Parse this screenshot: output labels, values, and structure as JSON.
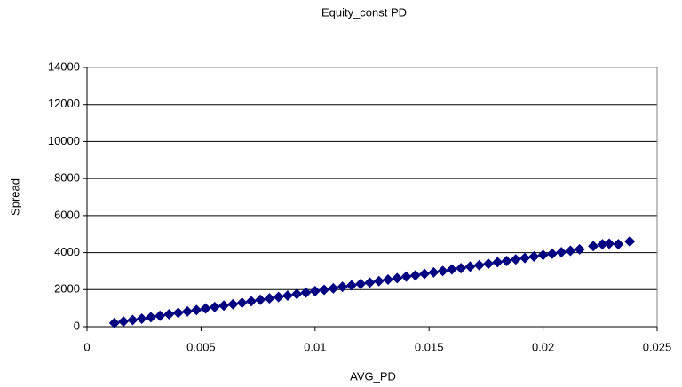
{
  "chart_data": {
    "type": "scatter",
    "title": "Equity_const PD",
    "xlabel": "AVG_PD",
    "ylabel": "Spread",
    "x": [
      0.0012,
      0.0016,
      0.002,
      0.0024,
      0.0028,
      0.0032,
      0.0036,
      0.004,
      0.0044,
      0.0048,
      0.0052,
      0.0056,
      0.006,
      0.0064,
      0.0068,
      0.0072,
      0.0076,
      0.008,
      0.0084,
      0.0088,
      0.0092,
      0.0096,
      0.01,
      0.0104,
      0.0108,
      0.0112,
      0.0116,
      0.012,
      0.0124,
      0.0128,
      0.0132,
      0.0136,
      0.014,
      0.0144,
      0.0148,
      0.0152,
      0.0156,
      0.016,
      0.0164,
      0.0168,
      0.0172,
      0.0176,
      0.018,
      0.0184,
      0.0188,
      0.0192,
      0.0196,
      0.02,
      0.0204,
      0.0208,
      0.0212,
      0.0216,
      0.0222,
      0.0226,
      0.0229,
      0.0233,
      0.0238
    ],
    "values": [
      200,
      280,
      360,
      430,
      510,
      590,
      670,
      750,
      820,
      900,
      980,
      1060,
      1140,
      1210,
      1290,
      1370,
      1450,
      1530,
      1600,
      1680,
      1760,
      1840,
      1920,
      1990,
      2070,
      2150,
      2230,
      2310,
      2380,
      2460,
      2540,
      2620,
      2700,
      2770,
      2850,
      2930,
      3010,
      3090,
      3160,
      3240,
      3320,
      3400,
      3480,
      3550,
      3630,
      3710,
      3790,
      3870,
      3940,
      4020,
      4100,
      4180,
      4350,
      4450,
      4480,
      4450,
      4600
    ],
    "color": "#000080",
    "xlim": [
      0,
      0.025
    ],
    "xticks": [
      0,
      0.005,
      0.01,
      0.015,
      0.02,
      0.025
    ],
    "ylim": [
      0,
      14000
    ],
    "yticks": [
      0,
      2000,
      4000,
      6000,
      8000,
      10000,
      12000,
      14000
    ],
    "grid": true
  }
}
